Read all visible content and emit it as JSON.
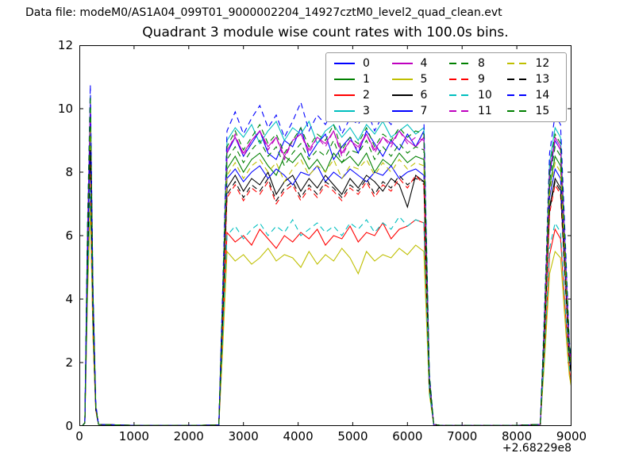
{
  "header": {
    "label": "Data file: modeM0/AS1A04_099T01_9000002204_14927cztM0_level2_quad_clean.evt"
  },
  "chart_data": {
    "type": "line",
    "title": "Quadrant 3 module wise count rates with 100.0s bins.",
    "xlabel": "",
    "ylabel": "",
    "grid": false,
    "x_axis": {
      "min": 0,
      "max": 9000,
      "tick_values": [
        0,
        1000,
        2000,
        3000,
        4000,
        5000,
        6000,
        7000,
        8000,
        9000
      ],
      "tick_labels": [
        "0",
        "1000",
        "2000",
        "3000",
        "4000",
        "5000",
        "6000",
        "7000",
        "8000",
        "9000"
      ],
      "offset_label": "+2.68229e8"
    },
    "y_axis": {
      "min": 0,
      "max": 12,
      "tick_values": [
        0,
        2,
        4,
        6,
        8,
        10,
        12
      ],
      "tick_labels": [
        "0",
        "2",
        "4",
        "6",
        "8",
        "10",
        "12"
      ]
    },
    "legend": {
      "location": "upper center",
      "columns": 4,
      "entries": [
        {
          "label": "0",
          "color": "#0000ff",
          "dashed": false
        },
        {
          "label": "1",
          "color": "#008000",
          "dashed": false
        },
        {
          "label": "2",
          "color": "#ff0000",
          "dashed": false
        },
        {
          "label": "3",
          "color": "#00bfbf",
          "dashed": false
        },
        {
          "label": "4",
          "color": "#bf00bf",
          "dashed": false
        },
        {
          "label": "5",
          "color": "#bfbf00",
          "dashed": false
        },
        {
          "label": "6",
          "color": "#000000",
          "dashed": false
        },
        {
          "label": "7",
          "color": "#0000ff",
          "dashed": false
        },
        {
          "label": "8",
          "color": "#008000",
          "dashed": true
        },
        {
          "label": "9",
          "color": "#ff0000",
          "dashed": true
        },
        {
          "label": "10",
          "color": "#00bfbf",
          "dashed": true
        },
        {
          "label": "11",
          "color": "#bf00bf",
          "dashed": true
        },
        {
          "label": "12",
          "color": "#bfbf00",
          "dashed": true
        },
        {
          "label": "13",
          "color": "#000000",
          "dashed": true
        },
        {
          "label": "14",
          "color": "#0000ff",
          "dashed": true
        },
        {
          "label": "15",
          "color": "#008000",
          "dashed": true
        }
      ]
    },
    "x": [
      50,
      100,
      150,
      200,
      250,
      300,
      350,
      1000,
      2000,
      2550,
      2620,
      2700,
      2850,
      3000,
      3150,
      3300,
      3450,
      3600,
      3750,
      3900,
      4050,
      4200,
      4350,
      4500,
      4650,
      4800,
      4950,
      5100,
      5250,
      5400,
      5550,
      5700,
      5850,
      6000,
      6150,
      6300,
      6400,
      6480,
      6600,
      7000,
      8000,
      8430,
      8500,
      8600,
      8700,
      8800,
      8900,
      8960,
      9000
    ],
    "series": [
      {
        "name": "0",
        "color": "#0000ff",
        "dashed": false,
        "values": [
          0,
          0.1,
          6.0,
          10.0,
          4.0,
          0.6,
          0.05,
          0.02,
          0.02,
          0.03,
          4.0,
          8.6,
          9.1,
          8.5,
          8.9,
          9.3,
          8.6,
          8.4,
          9.0,
          8.8,
          9.4,
          8.5,
          8.9,
          9.2,
          8.4,
          8.8,
          9.1,
          8.6,
          9.3,
          8.9,
          8.5,
          9.0,
          8.7,
          9.2,
          8.8,
          9.3,
          1.5,
          0.05,
          0.02,
          0.02,
          0.02,
          0.05,
          3.1,
          7.9,
          9.0,
          8.7,
          4.8,
          2.5,
          1.8
        ]
      },
      {
        "name": "1",
        "color": "#008000",
        "dashed": false,
        "values": [
          0,
          0.1,
          5.7,
          9.5,
          3.8,
          0.6,
          0.05,
          0.02,
          0.02,
          0.03,
          3.7,
          8.1,
          8.5,
          8.0,
          8.4,
          8.6,
          8.2,
          7.9,
          8.5,
          8.3,
          8.6,
          8.1,
          8.4,
          8.0,
          8.6,
          8.3,
          8.5,
          8.2,
          8.6,
          8.0,
          8.4,
          8.2,
          8.6,
          8.3,
          8.5,
          8.4,
          1.4,
          0.05,
          0.02,
          0.02,
          0.02,
          0.05,
          2.9,
          7.5,
          8.5,
          8.2,
          4.6,
          2.4,
          1.7
        ]
      },
      {
        "name": "2",
        "color": "#ff0000",
        "dashed": false,
        "values": [
          0,
          0.1,
          4.3,
          7.1,
          2.8,
          0.5,
          0.05,
          0.02,
          0.02,
          0.03,
          2.7,
          6.1,
          5.8,
          6.0,
          5.7,
          6.2,
          5.9,
          5.6,
          6.0,
          5.8,
          6.1,
          5.9,
          6.2,
          5.7,
          6.0,
          5.9,
          6.3,
          5.8,
          6.1,
          6.0,
          6.4,
          5.9,
          6.2,
          6.3,
          6.5,
          6.4,
          1.1,
          0.05,
          0.02,
          0.02,
          0.02,
          0.05,
          2.1,
          5.4,
          6.2,
          5.9,
          3.3,
          1.8,
          1.3
        ]
      },
      {
        "name": "3",
        "color": "#00bfbf",
        "dashed": false,
        "values": [
          0,
          0.1,
          6.2,
          10.4,
          4.2,
          0.6,
          0.05,
          0.02,
          0.02,
          0.03,
          4.1,
          9.0,
          9.4,
          9.1,
          9.5,
          8.9,
          9.3,
          9.6,
          9.0,
          9.4,
          9.2,
          9.6,
          8.9,
          9.3,
          9.5,
          9.1,
          9.4,
          9.0,
          9.5,
          9.2,
          9.6,
          9.1,
          9.3,
          9.5,
          9.2,
          9.4,
          1.6,
          0.05,
          0.02,
          0.02,
          0.02,
          0.05,
          3.2,
          8.3,
          9.4,
          9.1,
          5.1,
          2.6,
          1.9
        ]
      },
      {
        "name": "4",
        "color": "#bf00bf",
        "dashed": false,
        "values": [
          0,
          0.1,
          6.1,
          10.1,
          4.0,
          0.6,
          0.05,
          0.02,
          0.02,
          0.03,
          4.0,
          8.7,
          9.1,
          8.6,
          9.0,
          9.3,
          8.8,
          9.1,
          8.5,
          9.0,
          9.2,
          8.7,
          9.1,
          8.9,
          9.3,
          8.6,
          9.0,
          8.8,
          9.2,
          8.7,
          9.1,
          8.9,
          9.3,
          9.0,
          8.8,
          9.1,
          1.5,
          0.05,
          0.02,
          0.02,
          0.02,
          0.05,
          3.1,
          8.0,
          9.1,
          8.8,
          4.9,
          2.5,
          1.8
        ]
      },
      {
        "name": "5",
        "color": "#bfbf00",
        "dashed": false,
        "values": [
          0,
          0.1,
          4.1,
          6.9,
          2.8,
          0.5,
          0.05,
          0.02,
          0.02,
          0.03,
          2.4,
          5.5,
          5.2,
          5.4,
          5.1,
          5.3,
          5.6,
          5.2,
          5.4,
          5.3,
          5.0,
          5.5,
          5.1,
          5.4,
          5.2,
          5.6,
          5.3,
          4.8,
          5.5,
          5.2,
          5.4,
          5.3,
          5.6,
          5.4,
          5.7,
          5.5,
          1.0,
          0.05,
          0.02,
          0.02,
          0.02,
          0.05,
          1.9,
          4.8,
          5.5,
          5.3,
          2.9,
          1.6,
          1.2
        ]
      },
      {
        "name": "6",
        "color": "#000000",
        "dashed": false,
        "values": [
          0,
          0.1,
          5.3,
          8.9,
          3.6,
          0.6,
          0.05,
          0.02,
          0.02,
          0.03,
          3.4,
          7.5,
          7.9,
          7.4,
          7.8,
          7.6,
          8.0,
          7.3,
          7.7,
          7.9,
          7.4,
          7.8,
          7.5,
          7.9,
          7.6,
          7.3,
          7.8,
          7.5,
          7.9,
          7.7,
          7.4,
          7.8,
          7.6,
          6.9,
          7.9,
          7.7,
          1.3,
          0.05,
          0.02,
          0.02,
          0.02,
          0.05,
          2.7,
          6.9,
          7.8,
          7.5,
          4.2,
          2.2,
          1.6
        ]
      },
      {
        "name": "7",
        "color": "#0000ff",
        "dashed": false,
        "values": [
          0,
          0.1,
          5.5,
          9.2,
          3.7,
          0.6,
          0.05,
          0.02,
          0.02,
          0.03,
          3.6,
          7.8,
          8.1,
          7.7,
          8.0,
          8.2,
          7.8,
          8.1,
          7.9,
          7.6,
          8.0,
          7.9,
          8.2,
          7.7,
          8.0,
          7.8,
          8.1,
          7.9,
          7.7,
          8.0,
          7.9,
          8.2,
          7.8,
          8.0,
          8.1,
          7.9,
          1.4,
          0.05,
          0.02,
          0.02,
          0.02,
          0.05,
          2.8,
          7.2,
          8.1,
          7.8,
          4.4,
          2.3,
          1.6
        ]
      },
      {
        "name": "8",
        "color": "#008000",
        "dashed": true,
        "values": [
          0,
          0.1,
          5.9,
          9.8,
          3.9,
          0.6,
          0.05,
          0.02,
          0.02,
          0.03,
          3.9,
          8.4,
          8.8,
          8.3,
          8.7,
          9.0,
          8.5,
          8.8,
          8.2,
          8.6,
          8.9,
          8.4,
          8.7,
          8.5,
          9.0,
          8.3,
          8.7,
          8.6,
          9.0,
          8.4,
          8.8,
          8.5,
          8.9,
          8.6,
          8.8,
          8.7,
          1.5,
          0.05,
          0.02,
          0.02,
          0.02,
          0.05,
          3.0,
          7.7,
          8.8,
          8.5,
          4.7,
          2.4,
          1.7
        ]
      },
      {
        "name": "9",
        "color": "#ff0000",
        "dashed": true,
        "values": [
          0,
          0.1,
          5.2,
          8.6,
          3.4,
          0.5,
          0.05,
          0.02,
          0.02,
          0.03,
          3.3,
          7.2,
          7.6,
          7.1,
          7.5,
          7.3,
          7.7,
          7.0,
          7.4,
          7.6,
          7.1,
          7.5,
          7.2,
          7.6,
          7.4,
          7.1,
          7.5,
          7.3,
          7.7,
          7.2,
          7.6,
          7.4,
          7.8,
          7.5,
          7.9,
          7.6,
          1.3,
          0.05,
          0.02,
          0.02,
          0.02,
          0.05,
          2.6,
          6.7,
          7.6,
          7.3,
          4.1,
          2.1,
          1.5
        ]
      },
      {
        "name": "10",
        "color": "#00bfbf",
        "dashed": true,
        "values": [
          0,
          0.1,
          4.5,
          7.5,
          3.0,
          0.5,
          0.05,
          0.02,
          0.02,
          0.03,
          2.8,
          6.0,
          6.3,
          5.9,
          6.2,
          6.4,
          6.0,
          6.3,
          6.1,
          6.5,
          6.0,
          6.2,
          6.4,
          6.1,
          6.3,
          6.0,
          6.4,
          6.2,
          6.5,
          6.1,
          6.4,
          6.2,
          6.6,
          6.3,
          6.5,
          6.4,
          1.1,
          0.05,
          0.02,
          0.02,
          0.02,
          0.05,
          2.2,
          5.6,
          6.4,
          6.1,
          3.4,
          1.9,
          1.4
        ]
      },
      {
        "name": "11",
        "color": "#bf00bf",
        "dashed": true,
        "values": [
          0,
          0.1,
          6.1,
          10.2,
          4.1,
          0.6,
          0.05,
          0.02,
          0.02,
          0.03,
          4.0,
          8.6,
          9.2,
          8.5,
          9.0,
          9.3,
          8.7,
          9.1,
          8.4,
          9.0,
          9.2,
          8.6,
          9.1,
          8.8,
          9.3,
          8.5,
          9.0,
          8.7,
          9.2,
          8.6,
          9.1,
          8.8,
          9.3,
          8.9,
          9.1,
          9.0,
          1.5,
          0.05,
          0.02,
          0.02,
          0.02,
          0.05,
          3.1,
          8.0,
          9.0,
          8.7,
          4.9,
          2.5,
          1.8
        ]
      },
      {
        "name": "12",
        "color": "#bfbf00",
        "dashed": true,
        "values": [
          0,
          0.1,
          5.6,
          9.3,
          3.7,
          0.6,
          0.05,
          0.02,
          0.02,
          0.03,
          3.6,
          7.9,
          8.3,
          7.8,
          8.2,
          8.4,
          8.0,
          8.3,
          7.7,
          8.1,
          8.4,
          7.9,
          8.2,
          8.0,
          8.4,
          7.8,
          8.2,
          8.1,
          8.4,
          7.9,
          8.3,
          8.0,
          8.4,
          8.1,
          8.3,
          8.2,
          1.4,
          0.05,
          0.02,
          0.02,
          0.02,
          0.05,
          2.8,
          7.3,
          8.3,
          8.0,
          4.5,
          2.3,
          1.7
        ]
      },
      {
        "name": "13",
        "color": "#000000",
        "dashed": true,
        "values": [
          0,
          0.1,
          5.2,
          8.7,
          3.5,
          0.5,
          0.05,
          0.02,
          0.02,
          0.03,
          3.4,
          7.3,
          7.7,
          7.2,
          7.6,
          7.4,
          7.8,
          7.1,
          7.5,
          7.7,
          7.2,
          7.6,
          7.3,
          7.7,
          7.5,
          7.2,
          7.6,
          7.4,
          7.8,
          7.3,
          7.7,
          7.5,
          7.9,
          7.6,
          7.8,
          7.7,
          1.3,
          0.05,
          0.02,
          0.02,
          0.02,
          0.05,
          2.6,
          6.8,
          7.7,
          7.4,
          4.1,
          2.2,
          1.5
        ]
      },
      {
        "name": "14",
        "color": "#0000ff",
        "dashed": true,
        "values": [
          0,
          0.1,
          6.5,
          10.75,
          4.3,
          0.7,
          0.05,
          0.02,
          0.02,
          0.03,
          4.3,
          9.3,
          9.9,
          9.2,
          9.7,
          10.1,
          9.4,
          9.8,
          9.1,
          9.6,
          10.2,
          9.3,
          9.8,
          9.5,
          10.0,
          9.2,
          9.7,
          9.5,
          10.0,
          9.3,
          9.8,
          9.5,
          9.9,
          9.6,
          9.8,
          9.7,
          1.7,
          0.05,
          0.02,
          0.02,
          0.02,
          0.05,
          3.4,
          8.6,
          9.8,
          9.5,
          5.3,
          2.7,
          2.0
        ]
      },
      {
        "name": "15",
        "color": "#008000",
        "dashed": true,
        "values": [
          0,
          0.1,
          6.2,
          10.4,
          4.2,
          0.6,
          0.05,
          0.02,
          0.02,
          0.03,
          4.1,
          8.8,
          9.3,
          8.7,
          9.1,
          9.5,
          8.9,
          9.2,
          8.6,
          9.0,
          9.4,
          8.8,
          9.2,
          9.0,
          9.5,
          8.7,
          9.1,
          8.9,
          9.4,
          8.8,
          9.2,
          9.0,
          9.4,
          9.1,
          9.3,
          9.2,
          1.6,
          0.05,
          0.02,
          0.02,
          0.02,
          0.05,
          3.2,
          8.1,
          9.2,
          8.9,
          5.0,
          2.6,
          1.9
        ]
      }
    ]
  }
}
